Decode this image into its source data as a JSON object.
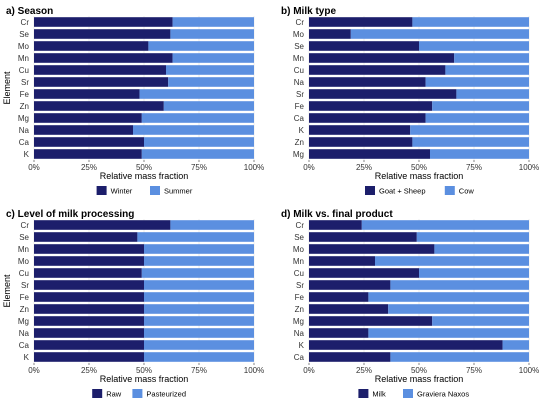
{
  "y_axis_label": "Element",
  "colors": {
    "primary": "#1c1e6b",
    "secondary": "#5b8fe0",
    "axis_text": "#333333",
    "grid": "#e3e3e3"
  },
  "chart_data": [
    {
      "type": "bar",
      "orientation": "horizontal",
      "stacked": "percent",
      "title": "a) Season",
      "xlabel": "Relative mass fraction",
      "ylabel": "Element",
      "x_ticks": [
        "0%",
        "25%",
        "50%",
        "75%",
        "100%"
      ],
      "xlim": [
        0,
        100
      ],
      "categories": [
        "Cr",
        "Se",
        "Mo",
        "Mn",
        "Cu",
        "Sr",
        "Fe",
        "Zn",
        "Mg",
        "Na",
        "Ca",
        "K"
      ],
      "series": [
        {
          "name": "Winter",
          "values": [
            63,
            62,
            52,
            63,
            60,
            61,
            48,
            59,
            49,
            45,
            50,
            49
          ]
        },
        {
          "name": "Summer",
          "values": [
            37,
            38,
            48,
            37,
            40,
            39,
            52,
            41,
            51,
            55,
            50,
            51
          ]
        }
      ],
      "legend": "bottom"
    },
    {
      "type": "bar",
      "orientation": "horizontal",
      "stacked": "percent",
      "title": "b) Milk type",
      "xlabel": "Relative mass fraction",
      "ylabel": "",
      "x_ticks": [
        "0%",
        "25%",
        "50%",
        "75%",
        "100%"
      ],
      "xlim": [
        0,
        100
      ],
      "categories": [
        "Cr",
        "Mo",
        "Se",
        "Mn",
        "Cu",
        "Na",
        "Sr",
        "Fe",
        "Ca",
        "K",
        "Zn",
        "Mg"
      ],
      "series": [
        {
          "name": "Goat + Sheep",
          "values": [
            47,
            19,
            50,
            66,
            62,
            53,
            67,
            56,
            53,
            46,
            47,
            55
          ]
        },
        {
          "name": "Cow",
          "values": [
            53,
            81,
            50,
            34,
            38,
            47,
            33,
            44,
            47,
            54,
            53,
            45
          ]
        }
      ],
      "legend": "bottom"
    },
    {
      "type": "bar",
      "orientation": "horizontal",
      "stacked": "percent",
      "title": "c) Level of milk processing",
      "xlabel": "Relative mass fraction",
      "ylabel": "Element",
      "x_ticks": [
        "0%",
        "25%",
        "50%",
        "75%",
        "100%"
      ],
      "xlim": [
        0,
        100
      ],
      "categories": [
        "Cr",
        "Se",
        "Mn",
        "Mo",
        "Cu",
        "Sr",
        "Fe",
        "Zn",
        "Mg",
        "Na",
        "Ca",
        "K"
      ],
      "series": [
        {
          "name": "Raw",
          "values": [
            62,
            47,
            50,
            50,
            49,
            50,
            50,
            50,
            50,
            50,
            50,
            50
          ]
        },
        {
          "name": "Pasteurized",
          "values": [
            38,
            53,
            50,
            50,
            51,
            50,
            50,
            50,
            50,
            50,
            50,
            50
          ]
        }
      ],
      "legend": "bottom"
    },
    {
      "type": "bar",
      "orientation": "horizontal",
      "stacked": "percent",
      "title": "d) Milk vs. final product",
      "xlabel": "Relative mass fraction",
      "ylabel": "",
      "x_ticks": [
        "0%",
        "25%",
        "50%",
        "75%",
        "100%"
      ],
      "xlim": [
        0,
        100
      ],
      "categories": [
        "Cr",
        "Se",
        "Mo",
        "Mn",
        "Cu",
        "Sr",
        "Fe",
        "Zn",
        "Mg",
        "Na",
        "K",
        "Ca"
      ],
      "series": [
        {
          "name": "Milk",
          "values": [
            24,
            49,
            57,
            30,
            50,
            37,
            27,
            36,
            56,
            27,
            88,
            37
          ]
        },
        {
          "name": "Graviera Naxos",
          "values": [
            76,
            51,
            43,
            70,
            50,
            63,
            73,
            64,
            44,
            73,
            12,
            63
          ]
        }
      ],
      "legend": "bottom"
    }
  ]
}
